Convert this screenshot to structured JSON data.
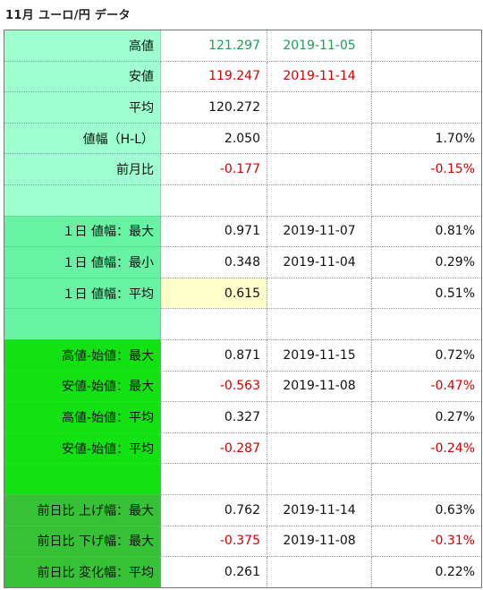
{
  "title": "11月 ユーロ/円 データ",
  "rows": [
    {
      "label": "高値",
      "value": "121.297",
      "date": "2019-11-05",
      "pct": "",
      "bg": "bg1",
      "vcolor": "green",
      "dcolor": "green",
      "pcolor": ""
    },
    {
      "label": "安値",
      "value": "119.247",
      "date": "2019-11-14",
      "pct": "",
      "bg": "bg1",
      "vcolor": "red",
      "dcolor": "red",
      "pcolor": ""
    },
    {
      "label": "平均",
      "value": "120.272",
      "date": "",
      "pct": "",
      "bg": "bg1",
      "vcolor": "",
      "dcolor": "",
      "pcolor": ""
    },
    {
      "label": "値幅（H-L）",
      "value": "2.050",
      "date": "",
      "pct": "1.70%",
      "bg": "bg1",
      "vcolor": "",
      "dcolor": "",
      "pcolor": ""
    },
    {
      "label": "前月比",
      "value": "-0.177",
      "date": "",
      "pct": "-0.15%",
      "bg": "bg1",
      "vcolor": "red",
      "dcolor": "",
      "pcolor": "red"
    },
    {
      "label": "",
      "value": "",
      "date": "",
      "pct": "",
      "bg": "bg1",
      "vcolor": "",
      "dcolor": "",
      "pcolor": ""
    },
    {
      "label": "１日 値幅：最大",
      "value": "0.971",
      "date": "2019-11-07",
      "pct": "0.81%",
      "bg": "bg2",
      "vcolor": "",
      "dcolor": "",
      "pcolor": ""
    },
    {
      "label": "１日 値幅：最小",
      "value": "0.348",
      "date": "2019-11-04",
      "pct": "0.29%",
      "bg": "bg2",
      "vcolor": "",
      "dcolor": "",
      "pcolor": ""
    },
    {
      "label": "１日 値幅：平均",
      "value": "0.615",
      "date": "",
      "pct": "0.51%",
      "bg": "bg2",
      "vcolor": "",
      "dcolor": "",
      "pcolor": "",
      "highlight": true
    },
    {
      "label": "",
      "value": "",
      "date": "",
      "pct": "",
      "bg": "bg2",
      "vcolor": "",
      "dcolor": "",
      "pcolor": ""
    },
    {
      "label": "高値-始値：最大",
      "value": "0.871",
      "date": "2019-11-15",
      "pct": "0.72%",
      "bg": "bg3",
      "vcolor": "",
      "dcolor": "",
      "pcolor": ""
    },
    {
      "label": "安値-始値：最大",
      "value": "-0.563",
      "date": "2019-11-08",
      "pct": "-0.47%",
      "bg": "bg3",
      "vcolor": "red",
      "dcolor": "",
      "pcolor": "red"
    },
    {
      "label": "高値-始値：平均",
      "value": "0.327",
      "date": "",
      "pct": "0.27%",
      "bg": "bg3",
      "vcolor": "",
      "dcolor": "",
      "pcolor": ""
    },
    {
      "label": "安値-始値：平均",
      "value": "-0.287",
      "date": "",
      "pct": "-0.24%",
      "bg": "bg3",
      "vcolor": "red",
      "dcolor": "",
      "pcolor": "red"
    },
    {
      "label": "",
      "value": "",
      "date": "",
      "pct": "",
      "bg": "bg3",
      "vcolor": "",
      "dcolor": "",
      "pcolor": ""
    },
    {
      "label": "前日比 上げ幅：最大",
      "value": "0.762",
      "date": "2019-11-14",
      "pct": "0.63%",
      "bg": "bg4",
      "vcolor": "",
      "dcolor": "",
      "pcolor": ""
    },
    {
      "label": "前日比 下げ幅：最大",
      "value": "-0.375",
      "date": "2019-11-08",
      "pct": "-0.31%",
      "bg": "bg4",
      "vcolor": "red",
      "dcolor": "",
      "pcolor": "red"
    },
    {
      "label": "前日比 変化幅：平均",
      "value": "0.261",
      "date": "",
      "pct": "0.22%",
      "bg": "bg4",
      "vcolor": "",
      "dcolor": "",
      "pcolor": ""
    }
  ],
  "colors": {
    "section_1": "#9effcf",
    "section_2": "#68f3a4",
    "section_3": "#12e212",
    "section_4": "#36c136",
    "highlight": "#ffffcc",
    "positive": "#1f9e55",
    "negative": "#d00000"
  }
}
